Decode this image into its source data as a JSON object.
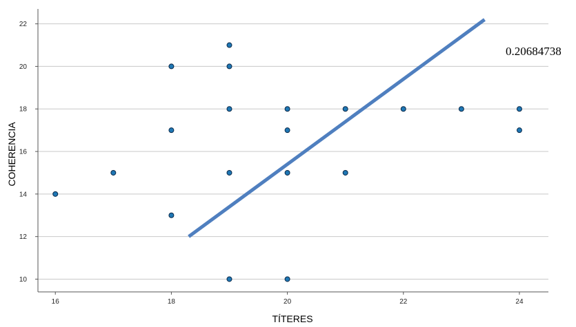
{
  "chart_data": {
    "type": "scatter",
    "xlabel": "TÍTERES",
    "ylabel": "COHERENCIA",
    "xlim": [
      15.7,
      24.5
    ],
    "ylim": [
      9.4,
      22.7
    ],
    "x_ticks": [
      16,
      18,
      20,
      22,
      24
    ],
    "y_ticks": [
      10,
      12,
      14,
      16,
      18,
      20,
      22
    ],
    "grid": "horizontal",
    "points": [
      {
        "x": 16,
        "y": 14
      },
      {
        "x": 17,
        "y": 15
      },
      {
        "x": 18,
        "y": 20
      },
      {
        "x": 18,
        "y": 17
      },
      {
        "x": 18,
        "y": 13
      },
      {
        "x": 19,
        "y": 21
      },
      {
        "x": 19,
        "y": 20
      },
      {
        "x": 19,
        "y": 18
      },
      {
        "x": 19,
        "y": 15
      },
      {
        "x": 19,
        "y": 10
      },
      {
        "x": 20,
        "y": 18
      },
      {
        "x": 20,
        "y": 17
      },
      {
        "x": 20,
        "y": 15
      },
      {
        "x": 20,
        "y": 10
      },
      {
        "x": 21,
        "y": 18
      },
      {
        "x": 21,
        "y": 15
      },
      {
        "x": 22,
        "y": 18
      },
      {
        "x": 23,
        "y": 18
      },
      {
        "x": 24,
        "y": 18
      },
      {
        "x": 24,
        "y": 17
      }
    ],
    "trendline": {
      "start": {
        "x": 18.3,
        "y": 12.0
      },
      "end": {
        "x": 23.4,
        "y": 22.2
      }
    },
    "annotation": "0.20684738",
    "colors": {
      "point_fill": "#1f77b4",
      "point_stroke": "#0b2a4a",
      "trendline": "#4f7fbf",
      "grid": "#c8c8c8",
      "axis": "#555555"
    }
  }
}
